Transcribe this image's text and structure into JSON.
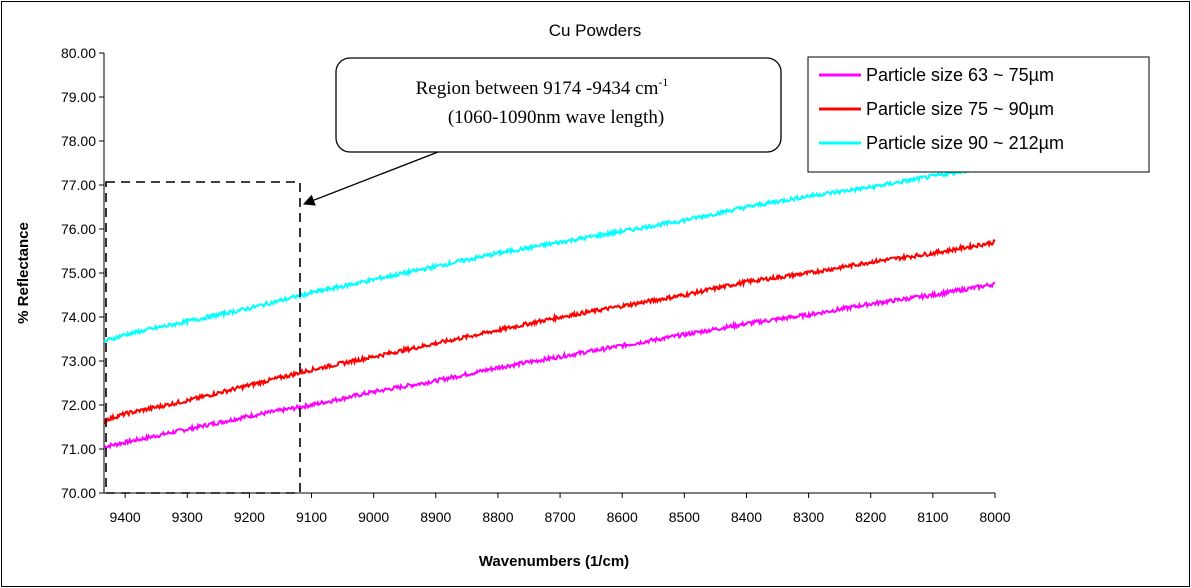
{
  "chart_data": {
    "type": "line",
    "title": "Cu Powders",
    "xlabel": "Wavenumbers (1/cm)",
    "ylabel": "% Reflectance",
    "xlim": [
      9434,
      8000
    ],
    "x_reversed": true,
    "ylim": [
      70,
      80
    ],
    "y_ticks": [
      "70.00",
      "71.00",
      "72.00",
      "73.00",
      "74.00",
      "75.00",
      "76.00",
      "77.00",
      "78.00",
      "79.00",
      "80.00"
    ],
    "x_ticks": [
      "9400",
      "9300",
      "9200",
      "9100",
      "9000",
      "8900",
      "8800",
      "8700",
      "8600",
      "8500",
      "8400",
      "8300",
      "8200",
      "8100",
      "8000"
    ],
    "grid": false,
    "legend_position": "top-right",
    "series": [
      {
        "name": "Particle size 63 ~ 75µm",
        "color": "#ff00ff",
        "x": [
          9434,
          9400,
          9300,
          9200,
          9100,
          9000,
          8900,
          8800,
          8700,
          8600,
          8500,
          8400,
          8300,
          8200,
          8100,
          8000
        ],
        "y": [
          71.05,
          71.15,
          71.45,
          71.75,
          72.0,
          72.3,
          72.55,
          72.85,
          73.1,
          73.35,
          73.6,
          73.85,
          74.05,
          74.3,
          74.5,
          74.75
        ]
      },
      {
        "name": "Particle size 75 ~ 90µm",
        "color": "#ff0000",
        "x": [
          9434,
          9400,
          9300,
          9200,
          9100,
          9000,
          8900,
          8800,
          8700,
          8600,
          8500,
          8400,
          8300,
          8200,
          8100,
          8000
        ],
        "y": [
          71.65,
          71.8,
          72.1,
          72.45,
          72.8,
          73.1,
          73.4,
          73.7,
          74.0,
          74.25,
          74.5,
          74.8,
          75.0,
          75.25,
          75.45,
          75.7
        ]
      },
      {
        "name": "Particle size 90 ~ 212µm",
        "color": "#00ffff",
        "x": [
          9434,
          9400,
          9300,
          9200,
          9100,
          9000,
          8900,
          8800,
          8700,
          8600,
          8500,
          8400,
          8300,
          8200,
          8100,
          8000
        ],
        "y": [
          73.45,
          73.6,
          73.9,
          74.2,
          74.55,
          74.85,
          75.15,
          75.45,
          75.7,
          75.95,
          76.2,
          76.5,
          76.75,
          76.95,
          77.2,
          77.45
        ]
      }
    ],
    "annotations": [
      {
        "text_main": "Region between 9174 -9434 cm",
        "text_sup": "-1",
        "text_line2": "(1060-1090nm wave length)",
        "region_x": [
          9434,
          9174
        ],
        "region_y": [
          70,
          77.1
        ],
        "style": "dashed-box-with-arrow"
      }
    ]
  }
}
